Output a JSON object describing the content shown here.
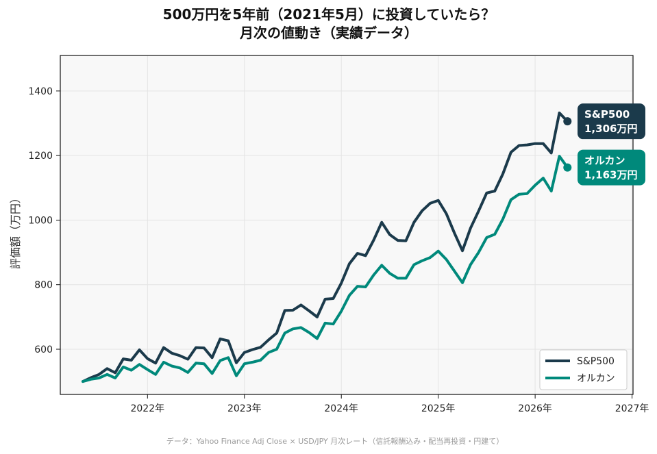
{
  "chart_data": {
    "type": "line",
    "title": "500万円を5年前（2021年5月）に投資していたら？",
    "subtitle": "月次の値動き（実績データ）",
    "ylabel": "評価額（万円）",
    "xlabel": "",
    "ylim": [
      460,
      1510
    ],
    "xlim": [
      2021.1,
      2027.01
    ],
    "yticks": [
      600,
      800,
      1000,
      1200,
      1400
    ],
    "xticks": [
      2022,
      2023,
      2024,
      2025,
      2026,
      2027
    ],
    "xtick_labels": [
      "2022年",
      "2023年",
      "2024年",
      "2025年",
      "2026年",
      "2027年"
    ],
    "grid": true,
    "legend_position": "bottom-right",
    "x_start": "2021-05",
    "series": [
      {
        "name": "S&P500",
        "color": "#1b3a4b",
        "values": [
          500,
          512,
          522,
          540,
          527,
          570,
          566,
          598,
          571,
          557,
          605,
          588,
          580,
          569,
          605,
          604,
          574,
          632,
          626,
          558,
          590,
          599,
          606,
          629,
          650,
          720,
          721,
          737,
          719,
          700,
          755,
          757,
          805,
          865,
          897,
          890,
          938,
          993,
          955,
          937,
          936,
          993,
          1029,
          1052,
          1061,
          1020,
          960,
          905,
          975,
          1028,
          1084,
          1090,
          1143,
          1210,
          1231,
          1233,
          1237,
          1237,
          1208,
          1332,
          1306
        ],
        "end_label": "1,306万円"
      },
      {
        "name": "オルカン",
        "color": "#00897b",
        "values": [
          500,
          507,
          511,
          522,
          511,
          545,
          535,
          553,
          537,
          522,
          560,
          548,
          542,
          528,
          557,
          555,
          525,
          565,
          574,
          518,
          555,
          560,
          566,
          590,
          600,
          650,
          663,
          667,
          652,
          633,
          681,
          678,
          718,
          767,
          795,
          793,
          830,
          860,
          835,
          820,
          820,
          862,
          874,
          884,
          904,
          878,
          842,
          806,
          862,
          900,
          946,
          956,
          1003,
          1063,
          1080,
          1082,
          1108,
          1130,
          1090,
          1198,
          1163
        ],
        "end_label": "1,163万円"
      }
    ],
    "annotations": [
      {
        "series": "S&P500",
        "line1": "S&P500",
        "line2": "1,306万円"
      },
      {
        "series": "オルカン",
        "line1": "オルカン",
        "line2": "1,163万円"
      }
    ],
    "footnote": "データ：Yahoo Finance Adj Close × USD/JPY 月次レート（信託報酬込み・配当再投資・円建て）"
  }
}
